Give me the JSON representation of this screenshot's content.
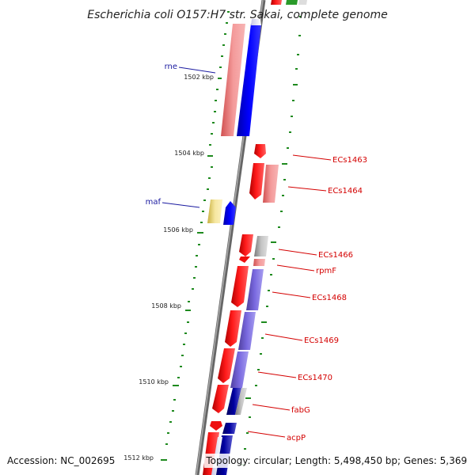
{
  "title": "Escherichia coli O157:H7 str. Sakai, complete genome",
  "ticks": [
    "1502 kbp",
    "1504 kbp",
    "1506 kbp",
    "1508 kbp",
    "1510 kbp",
    "1512 kbp"
  ],
  "labels": [
    {
      "text": "rne",
      "color": "#1a1aa0",
      "side": "left"
    },
    {
      "text": "maf",
      "color": "#1a1aa0",
      "side": "left"
    },
    {
      "text": "ECs1463",
      "color": "#d40000",
      "side": "right"
    },
    {
      "text": "ECs1464",
      "color": "#d40000",
      "side": "right"
    },
    {
      "text": "ECs1466",
      "color": "#d40000",
      "side": "right"
    },
    {
      "text": "rpmF",
      "color": "#d40000",
      "side": "right"
    },
    {
      "text": "ECs1468",
      "color": "#d40000",
      "side": "right"
    },
    {
      "text": "ECs1469",
      "color": "#d40000",
      "side": "right"
    },
    {
      "text": "ECs1470",
      "color": "#d40000",
      "side": "right"
    },
    {
      "text": "fabG",
      "color": "#d40000",
      "side": "right"
    },
    {
      "text": "acpP",
      "color": "#d40000",
      "side": "right"
    }
  ],
  "footer": {
    "accession": "Accession: NC_002695",
    "topology": "Topology: circular; Length: 5,498,450 bp; Genes: 5,369"
  },
  "colors": {
    "backbone": "#888888",
    "forward_strand": "#ff0000",
    "reverse_strand": "#0000ff",
    "gc_dots": "#1e8a1e",
    "left_label": "#1a1aa0",
    "right_label": "#d40000"
  }
}
